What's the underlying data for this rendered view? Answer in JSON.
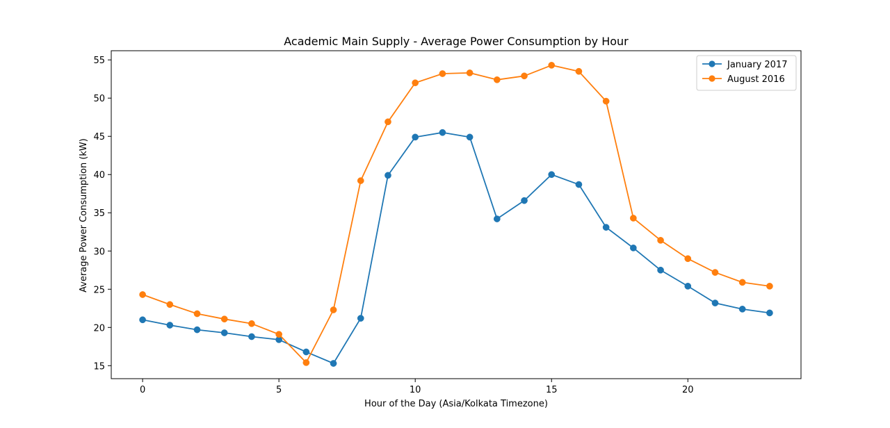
{
  "chart_data": {
    "type": "line",
    "title": "Academic Main Supply - Average Power Consumption by Hour",
    "xlabel": "Hour of the Day (Asia/Kolkata Timezone)",
    "ylabel": "Average Power Consumption (kW)",
    "x": [
      0,
      1,
      2,
      3,
      4,
      5,
      6,
      7,
      8,
      9,
      10,
      11,
      12,
      13,
      14,
      15,
      16,
      17,
      18,
      19,
      20,
      21,
      22,
      23
    ],
    "xlim": [
      -1.15,
      24.15
    ],
    "ylim": [
      13.3,
      56.2
    ],
    "xticks": [
      0,
      5,
      10,
      15,
      20
    ],
    "yticks": [
      15,
      20,
      25,
      30,
      35,
      40,
      45,
      50,
      55
    ],
    "grid": false,
    "legend_position": "top-right",
    "series": [
      {
        "name": "January 2017",
        "color": "#1f77b4",
        "values": [
          21.0,
          20.3,
          19.7,
          19.3,
          18.8,
          18.4,
          16.8,
          15.3,
          21.2,
          39.9,
          44.9,
          45.5,
          44.9,
          34.2,
          36.6,
          40.0,
          38.7,
          33.1,
          30.4,
          27.5,
          25.4,
          23.2,
          22.4,
          21.9
        ]
      },
      {
        "name": "August 2016",
        "color": "#ff7f0e",
        "values": [
          24.3,
          23.0,
          21.8,
          21.1,
          20.5,
          19.1,
          15.4,
          22.3,
          39.2,
          46.9,
          52.0,
          53.2,
          53.3,
          52.4,
          52.9,
          54.3,
          53.5,
          49.6,
          34.3,
          31.4,
          29.0,
          27.2,
          25.9,
          25.4
        ]
      }
    ]
  }
}
